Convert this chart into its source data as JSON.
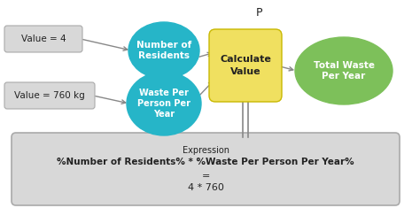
{
  "bg_color": "#ffffff",
  "value_box1_text": "Value = 4",
  "value_box2_text": "Value = 760 kg",
  "circle1_text": "Number of\nResidents",
  "circle2_text": "Waste Per\nPerson Per\nYear",
  "calc_box_text": "Calculate\nValue",
  "output_circle_text": "Total Waste\nPer Year",
  "p_label": "P",
  "expr_title": "Expression",
  "expr_line1": "%Number of Residents% * %Waste Per Person Per Year%",
  "expr_line2": "=",
  "expr_line3": "4 * 760",
  "circle_color": "#26B5C8",
  "calc_color": "#F0E060",
  "output_color": "#7DC05A",
  "box_color": "#D8D8D8",
  "expr_box_color": "#D8D8D8",
  "text_color_dark": "#222222",
  "text_color_white": "#ffffff",
  "arrow_color": "#888888"
}
